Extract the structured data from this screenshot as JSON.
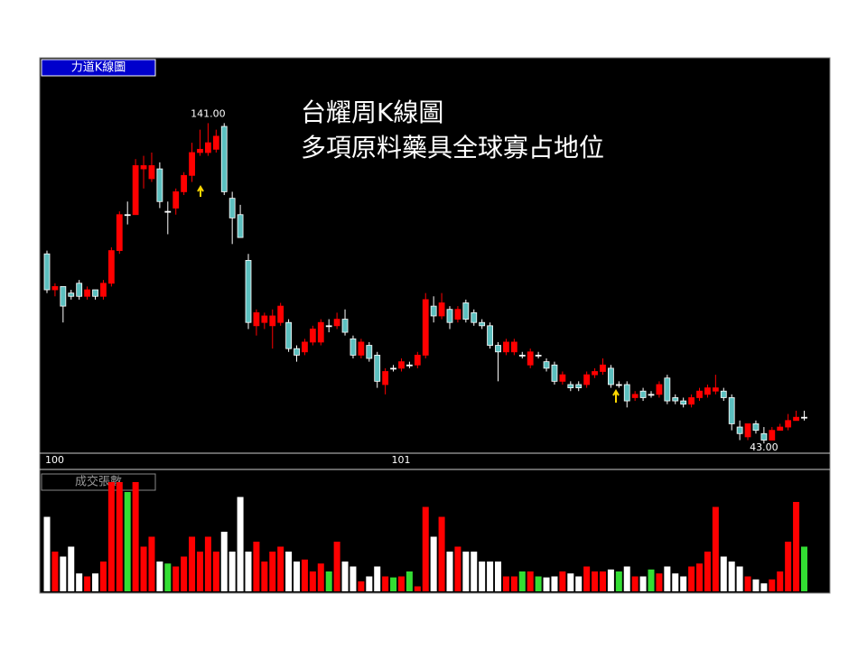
{
  "chart_data": {
    "type": "candlestick",
    "panel_label": "力道K線圖",
    "title": "台耀周K線圖",
    "subtitle": "多項原料藥具全球寡占地位",
    "high_label": "141.00",
    "low_label": "43.00",
    "volume_label": "成交張數",
    "categories": [
      "100",
      null,
      null,
      null,
      null,
      null,
      null,
      null,
      null,
      null,
      null,
      null,
      null,
      null,
      null,
      null,
      null,
      null,
      null,
      null,
      null,
      null,
      null,
      null,
      null,
      null,
      null,
      null,
      null,
      null,
      null,
      null,
      null,
      null,
      null,
      null,
      null,
      null,
      null,
      null,
      null,
      null,
      null,
      "101",
      null,
      null,
      null,
      null,
      null,
      null,
      null,
      null,
      null,
      null,
      null,
      null,
      null,
      null,
      null,
      null,
      null,
      null,
      null,
      null,
      null,
      null,
      null,
      null,
      null,
      null,
      null,
      null,
      null,
      null,
      null,
      null,
      null,
      null,
      null,
      null,
      null,
      null,
      null,
      null,
      null,
      null,
      null,
      null,
      null,
      null,
      null,
      null,
      null,
      null,
      null
    ],
    "open": [
      101,
      90,
      91,
      89,
      92,
      88,
      90,
      88,
      92,
      102,
      113,
      113,
      127,
      124,
      127,
      114,
      115,
      120,
      125,
      132,
      132,
      133,
      140,
      118,
      113,
      99,
      79,
      80,
      79,
      80,
      80,
      72,
      71,
      74,
      74,
      79,
      79,
      81,
      75,
      70,
      73,
      70,
      61,
      66,
      66,
      67,
      67,
      70,
      85,
      82,
      84,
      81,
      86,
      83,
      80,
      79,
      73,
      71,
      71,
      70,
      67,
      70,
      68,
      67,
      62,
      61,
      61,
      61,
      64,
      65,
      66,
      61,
      61,
      57,
      59,
      58,
      58,
      63,
      57,
      56,
      55,
      57,
      58,
      59,
      59,
      57,
      48,
      45,
      49,
      46,
      44,
      47,
      48,
      50,
      51
    ],
    "high": [
      102,
      92,
      91,
      90,
      93,
      91,
      90,
      93,
      103,
      114,
      117,
      130,
      131,
      132,
      129,
      117,
      121,
      126,
      135,
      139,
      141,
      139,
      141,
      120,
      116,
      101,
      84,
      83,
      84,
      86,
      81,
      73,
      75,
      79,
      81,
      81,
      83,
      84,
      76,
      75,
      74,
      71,
      66,
      67,
      69,
      68,
      71,
      89,
      88,
      89,
      85,
      85,
      87,
      84,
      81,
      80,
      74,
      75,
      75,
      71,
      72,
      71,
      69,
      68,
      65,
      62,
      62,
      65,
      66,
      69,
      67,
      62,
      62,
      59,
      60,
      59,
      62,
      64,
      58,
      57,
      58,
      60,
      61,
      64,
      60,
      58,
      50,
      49,
      50,
      48,
      48,
      49,
      52,
      53,
      53
    ],
    "low": [
      89,
      88,
      80,
      87,
      87,
      87,
      87,
      87,
      91,
      101,
      110,
      113,
      121,
      123,
      115,
      107,
      113,
      119,
      123,
      131,
      131,
      132,
      119,
      104,
      106,
      78,
      76,
      78,
      72,
      79,
      71,
      68,
      70,
      73,
      73,
      77,
      78,
      76,
      69,
      69,
      68,
      60,
      58,
      65,
      65,
      66,
      66,
      69,
      80,
      81,
      78,
      80,
      80,
      79,
      78,
      72,
      62,
      70,
      70,
      69,
      66,
      69,
      65,
      61,
      61,
      59,
      59,
      60,
      63,
      64,
      60,
      60,
      54,
      56,
      56,
      57,
      57,
      55,
      55,
      54,
      54,
      56,
      57,
      58,
      56,
      47,
      44,
      44,
      46,
      43,
      44,
      47,
      47,
      50,
      50
    ],
    "close": [
      90,
      91,
      85,
      88,
      88,
      90,
      88,
      92,
      102,
      113,
      113,
      128,
      128,
      128,
      117,
      114,
      120,
      125,
      132,
      133,
      135,
      137,
      120,
      112,
      106,
      80,
      83,
      82,
      82,
      85,
      72,
      70,
      74,
      78,
      80,
      79,
      81,
      77,
      70,
      74,
      69,
      62,
      65,
      66,
      68,
      67,
      70,
      87,
      82,
      86,
      80,
      84,
      81,
      80,
      79,
      73,
      71,
      74,
      74,
      70,
      71,
      70,
      66,
      62,
      64,
      60,
      60,
      64,
      65,
      67,
      61,
      61,
      56,
      58,
      57,
      58,
      61,
      56,
      56,
      55,
      57,
      59,
      60,
      60,
      57,
      49,
      46,
      49,
      47,
      44,
      47,
      48,
      50,
      51,
      51
    ],
    "volume": [
      75,
      40,
      35,
      45,
      18,
      15,
      18,
      30,
      110,
      110,
      100,
      110,
      45,
      55,
      30,
      28,
      25,
      35,
      55,
      40,
      55,
      40,
      60,
      40,
      95,
      40,
      50,
      30,
      40,
      45,
      40,
      30,
      32,
      20,
      28,
      20,
      50,
      30,
      25,
      10,
      15,
      25,
      15,
      14,
      15,
      20,
      5,
      85,
      55,
      75,
      40,
      45,
      40,
      40,
      30,
      30,
      30,
      15,
      15,
      20,
      20,
      15,
      14,
      15,
      20,
      18,
      15,
      25,
      20,
      20,
      22,
      20,
      25,
      15,
      15,
      22,
      18,
      25,
      18,
      15,
      25,
      28,
      40,
      85,
      35,
      30,
      25,
      15,
      12,
      8,
      12,
      20,
      50,
      90,
      45
    ],
    "ylim": [
      40,
      161
    ],
    "volume_ylim": [
      0,
      100
    ],
    "up_color": "#ff0000",
    "down_color": "#5cbfbf",
    "flat_color": "#ffffff"
  }
}
